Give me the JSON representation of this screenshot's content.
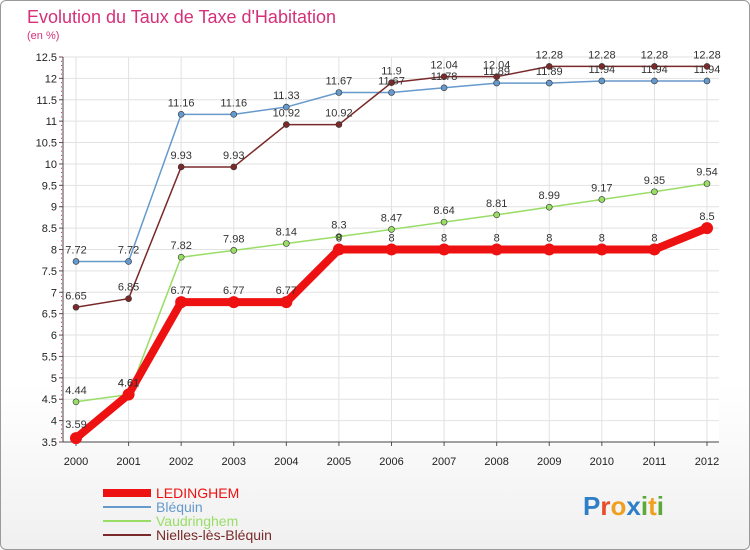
{
  "title": "Evolution du Taux de Taxe d'Habitation",
  "unit": "(en %)",
  "logo": "Proxiti",
  "chart_data": {
    "type": "line",
    "x": [
      "2000",
      "2001",
      "2002",
      "2003",
      "2004",
      "2005",
      "2006",
      "2007",
      "2008",
      "2009",
      "2010",
      "2011",
      "2012"
    ],
    "ylim": [
      3.5,
      12.5
    ],
    "yticks": [
      "3.5",
      "4",
      "4.5",
      "5",
      "5.5",
      "6",
      "6.5",
      "7",
      "7.5",
      "8",
      "8.5",
      "9",
      "9.5",
      "10",
      "10.5",
      "11",
      "11.5",
      "12",
      "12.5"
    ],
    "grid": true,
    "legend_position": "bottom-left",
    "series": [
      {
        "name": "LEDINGHEM",
        "color": "#ee1111",
        "width": 8,
        "marker": 6,
        "values": [
          3.59,
          4.61,
          6.77,
          6.77,
          6.77,
          8,
          8,
          8,
          8,
          8,
          8,
          8,
          8.5
        ],
        "labels": [
          "3.59",
          "4.61",
          "6.77",
          "6.77",
          "6.77",
          "8",
          "8",
          "8",
          "8",
          "8",
          "8",
          "8",
          "8.5"
        ]
      },
      {
        "name": "Bléquin",
        "color": "#6699cc",
        "width": 1.5,
        "marker": 3,
        "values": [
          7.72,
          7.72,
          11.16,
          11.16,
          11.33,
          11.67,
          11.67,
          11.78,
          11.89,
          11.89,
          11.94,
          11.94,
          11.94
        ],
        "labels": [
          "7.72",
          "7.72",
          "11.16",
          "11.16",
          "11.33",
          "11.67",
          "11.67",
          "11.78",
          "11.89",
          "11.89",
          "11.94",
          "11.94",
          "11.94"
        ]
      },
      {
        "name": "Vaudringhem",
        "color": "#99dd66",
        "width": 1.5,
        "marker": 3,
        "values": [
          4.44,
          4.61,
          7.82,
          7.98,
          8.14,
          8.3,
          8.47,
          8.64,
          8.81,
          8.99,
          9.17,
          9.35,
          9.54
        ],
        "labels": [
          "4.44",
          "4.61",
          "7.82",
          "7.98",
          "8.14",
          "8.3",
          "8.47",
          "8.64",
          "8.81",
          "8.99",
          "9.17",
          "9.35",
          "9.54"
        ]
      },
      {
        "name": "Nielles-lès-Bléquin",
        "color": "#7a2a2a",
        "width": 1.5,
        "marker": 3,
        "values": [
          6.65,
          6.85,
          9.93,
          9.93,
          10.92,
          10.92,
          11.9,
          12.04,
          12.04,
          12.28,
          12.28,
          12.28,
          12.28
        ],
        "labels": [
          "6.65",
          "6.85",
          "9.93",
          "9.93",
          "10.92",
          "10.92",
          "11.9",
          "12.04",
          "12.04",
          "12.28",
          "12.28",
          "12.28",
          "12.28"
        ]
      }
    ]
  }
}
